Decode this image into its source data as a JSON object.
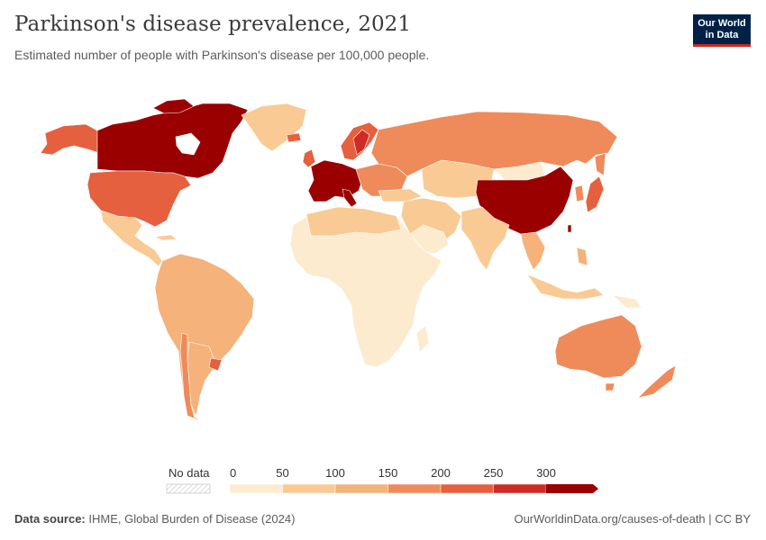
{
  "header": {
    "title": "Parkinson's disease prevalence, 2021",
    "subtitle": "Estimated number of people with Parkinson's disease per 100,000 people.",
    "logo_line1": "Our World",
    "logo_line2": "in Data"
  },
  "legend": {
    "no_data_label": "No data",
    "ticks": [
      "0",
      "50",
      "100",
      "150",
      "200",
      "250",
      "300"
    ],
    "colors": [
      "#fdebd0",
      "#f9ca94",
      "#f5b27a",
      "#ef8b5a",
      "#e5603f",
      "#cf2a23",
      "#9b0000"
    ]
  },
  "footer": {
    "source_label": "Data source:",
    "source_value": "IHME, Global Burden of Disease (2024)",
    "url": "OurWorldinData.org/causes-of-death | CC BY"
  },
  "regions": [
    {
      "name": "Canada",
      "color": "#9b0000"
    },
    {
      "name": "United States",
      "color": "#e5603f"
    },
    {
      "name": "Greenland",
      "color": "#f9ca94"
    },
    {
      "name": "Western Europe",
      "color": "#9b0000"
    },
    {
      "name": "Russia",
      "color": "#ef8b5a"
    },
    {
      "name": "China",
      "color": "#9b0000"
    },
    {
      "name": "Australia",
      "color": "#ef8b5a"
    },
    {
      "name": "Africa",
      "color": "#fdebd0"
    },
    {
      "name": "South America",
      "color": "#f5b27a"
    },
    {
      "name": "India",
      "color": "#f9ca94"
    }
  ]
}
